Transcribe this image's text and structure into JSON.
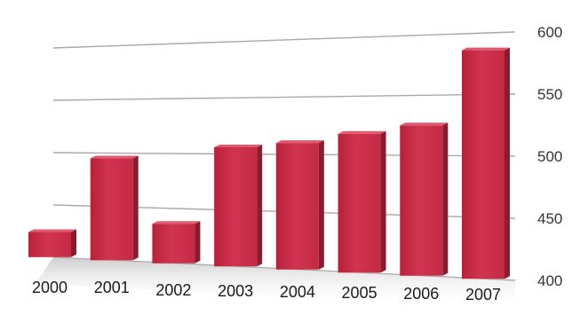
{
  "chart_data": {
    "type": "bar",
    "categories": [
      "2000",
      "2001",
      "2002",
      "2003",
      "2004",
      "2005",
      "2006",
      "2007"
    ],
    "values": [
      424,
      495,
      436,
      506,
      510,
      518,
      525,
      586
    ],
    "ylim": [
      400,
      600
    ],
    "yticks": [
      "400",
      "450",
      "500",
      "550",
      "600"
    ],
    "grid": true,
    "legend": "none",
    "bar_color": "#cc2e47"
  }
}
